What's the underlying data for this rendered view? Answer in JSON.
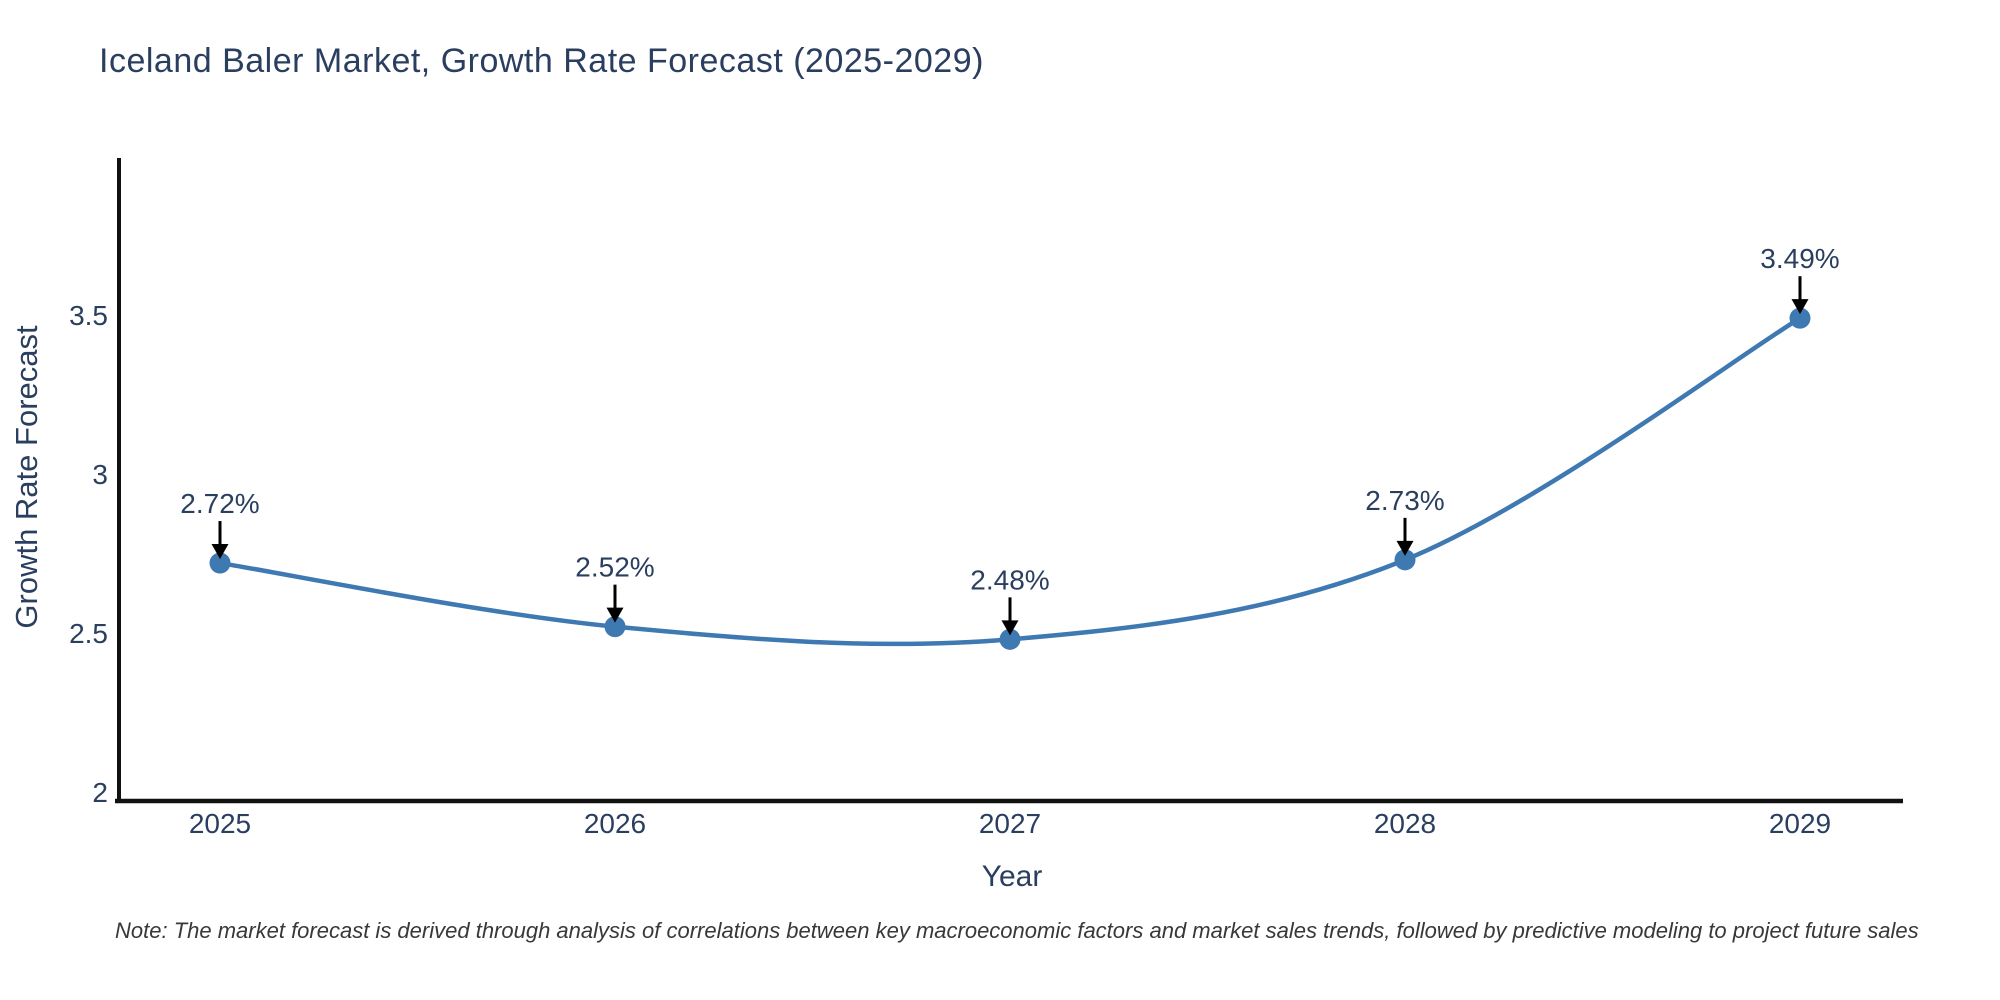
{
  "title": "Iceland Baler Market, Growth Rate Forecast (2025-2029)",
  "note": "Note: The market forecast is derived through analysis of correlations between key macroeconomic factors and market sales trends, followed by predictive modeling to project future sales",
  "chart_data": {
    "type": "line",
    "title": "Iceland Baler Market, Growth Rate Forecast (2025-2029)",
    "xlabel": "Year",
    "ylabel": "Growth Rate Forecast",
    "x": [
      "2025",
      "2026",
      "2027",
      "2028",
      "2029"
    ],
    "values": [
      2.72,
      2.52,
      2.48,
      2.73,
      3.49
    ],
    "point_labels": [
      "2.72%",
      "2.52%",
      "2.48%",
      "2.73%",
      "3.49%"
    ],
    "ytick_labels": [
      "2",
      "2.5",
      "3",
      "3.5"
    ],
    "ytick_values": [
      2,
      2.5,
      3,
      3.5
    ],
    "ylim": [
      1.99,
      4.0
    ],
    "line_shape": "spline",
    "grid": false,
    "legend_position": "none",
    "annotations": "black arrow pointing down at each data point with percent label above",
    "colors": {
      "line": "#3e79b2",
      "marker": "#3e79b2",
      "arrow": "#000000",
      "axis": "#111111",
      "label_text": "#2a3f5f",
      "note_text": "#383838",
      "background": "#ffffff"
    }
  }
}
